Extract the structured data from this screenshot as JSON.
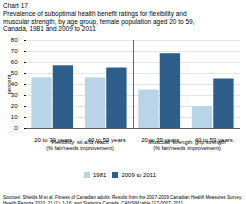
{
  "chart_data": {
    "type": "bar",
    "title": "Chart 17\nPrevalence of suboptimal health benefit ratings for flexibility and\nmuscular strength, by age group, female population aged 20 to 59,\nCanada, 1981 and 2009 to 2011",
    "ylabel": "percent",
    "categories": [
      "20 to 39 years",
      "40 to 59 years",
      "20 to 39 years",
      "40 to 59 years"
    ],
    "series": [
      {
        "name": "1981",
        "color": "#b8d4e8",
        "values": [
          46,
          46,
          35,
          20
        ]
      },
      {
        "name": "2009 to 2011",
        "color": "#2e5f8a",
        "values": [
          57,
          55,
          68,
          45
        ]
      }
    ],
    "annotations": [
      "Flexibility: sit and reach\n(% fair/needs improvement)",
      "Muscular strength: grip strength\n(% fair/needs improvement)"
    ],
    "caption": "Sources: Shields M et al. Fitness of Canadian adults: Results from the 2007-2009 Canadian Health Measures Survey.\nHealth Reports 2010; 21 (1): 1-16; and Statistics Canada, CANSIM table 117-0007, 2011.",
    "ylim": [
      0,
      80
    ],
    "yticks": [
      0,
      10,
      20,
      30,
      40,
      50,
      60,
      70,
      80
    ],
    "grid": true,
    "legend": "bottom"
  }
}
